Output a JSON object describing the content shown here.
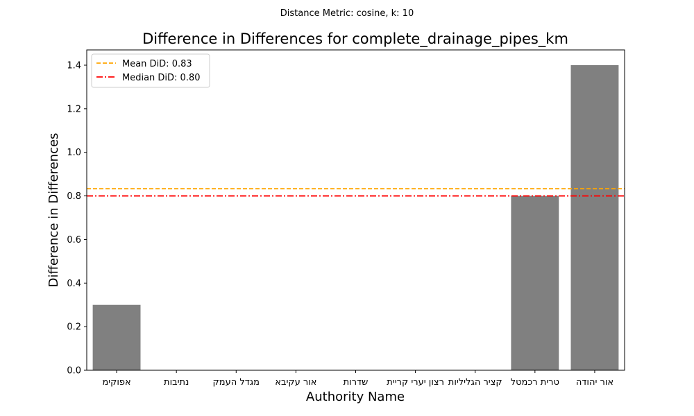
{
  "suptitle": "Distance Metric: cosine, k: 10",
  "chart_data": {
    "type": "bar",
    "title": "Difference in Differences for complete_drainage_pipes_km",
    "xlabel": "Authority Name",
    "ylabel": "Difference in Differences",
    "categories": [
      "מיקופא",
      "תוביתנ",
      "קמעה לדגמ",
      "אביקע רוא",
      "תורדש",
      "תיירק ירעי ןוצר",
      "תוילילגה ריצק",
      "לטמכר תירט",
      "הדוהי רוא"
    ],
    "values": [
      0.3,
      0.0,
      0.0,
      0.0,
      0.0,
      0.0,
      0.0,
      0.8,
      1.4
    ],
    "ylim": [
      0,
      1.47
    ],
    "yticks": [
      0.0,
      0.2,
      0.4,
      0.6,
      0.8,
      1.0,
      1.2,
      1.4
    ],
    "ytick_labels": [
      "0.0",
      "0.2",
      "0.4",
      "0.6",
      "0.8",
      "1.0",
      "1.2",
      "1.4"
    ],
    "bar_color": "#808080",
    "reference_lines": [
      {
        "label": "Mean DiD: 0.83",
        "value": 0.833,
        "color": "#ffa500",
        "style": "dashed"
      },
      {
        "label": "Median DiD: 0.80",
        "value": 0.8,
        "color": "#ff0000",
        "style": "dashdot"
      }
    ],
    "legend_position": "top-left",
    "grid": false
  }
}
